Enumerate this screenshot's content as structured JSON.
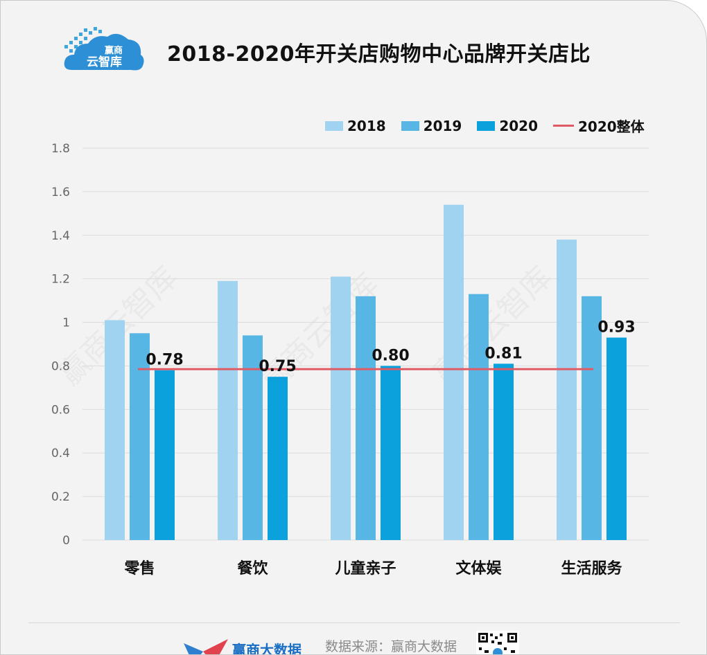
{
  "header": {
    "logo_line1": "赢商",
    "logo_line2": "云智库",
    "title": "2018-2020年开关店购物中心品牌开关店比"
  },
  "colors": {
    "s2018": "#9fd3ef",
    "s2019": "#57b6e4",
    "s2020": "#0aa1dc",
    "overall": "#e05a63",
    "grid": "#dcdcdc"
  },
  "legend": {
    "s2018": "2018",
    "s2019": "2019",
    "s2020": "2020",
    "overall": "2020整体"
  },
  "watermark": "赢商云智库",
  "chart_data": {
    "type": "bar",
    "title": "2018-2020年开关店购物中心品牌开关店比",
    "categories": [
      "零售",
      "餐饮",
      "儿童亲子",
      "文体娱",
      "生活服务"
    ],
    "series": [
      {
        "name": "2018",
        "values": [
          1.01,
          1.19,
          1.21,
          1.54,
          1.38
        ]
      },
      {
        "name": "2019",
        "values": [
          0.95,
          0.94,
          1.12,
          1.13,
          1.12
        ]
      },
      {
        "name": "2020",
        "values": [
          0.78,
          0.75,
          0.8,
          0.81,
          0.93
        ]
      }
    ],
    "data_labels_2020": [
      "0.78",
      "0.75",
      "0.80",
      "0.81",
      "0.93"
    ],
    "reference_line": {
      "name": "2020整体",
      "value": 0.785
    },
    "y_ticks": [
      "0",
      "0.2",
      "0.4",
      "0.6",
      "0.8",
      "1",
      "1.2",
      "1.4",
      "1.6",
      "1.8"
    ],
    "ylim": [
      0,
      1.8
    ],
    "xlabel": "",
    "ylabel": "",
    "grid": true,
    "legend_position": "top-right"
  },
  "footer": {
    "brand": "赢商大数据",
    "source": "数据来源：赢商大数据"
  }
}
